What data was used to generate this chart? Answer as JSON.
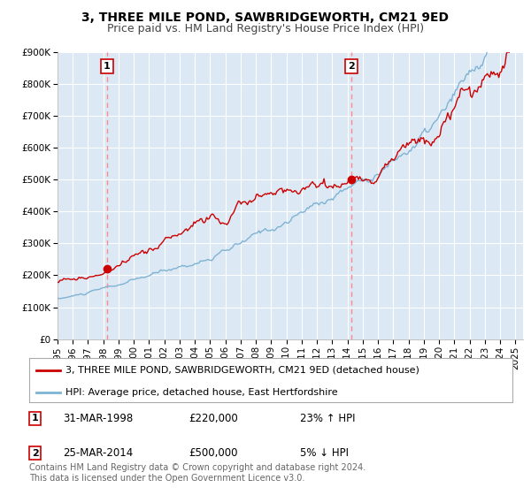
{
  "title": "3, THREE MILE POND, SAWBRIDGEWORTH, CM21 9ED",
  "subtitle": "Price paid vs. HM Land Registry's House Price Index (HPI)",
  "ylim": [
    0,
    900000
  ],
  "xlim_start": 1995.0,
  "xlim_end": 2025.5,
  "yticks": [
    0,
    100000,
    200000,
    300000,
    400000,
    500000,
    600000,
    700000,
    800000,
    900000
  ],
  "ytick_labels": [
    "£0",
    "£100K",
    "£200K",
    "£300K",
    "£400K",
    "£500K",
    "£600K",
    "£700K",
    "£800K",
    "£900K"
  ],
  "xticks": [
    1995,
    1996,
    1997,
    1998,
    1999,
    2000,
    2001,
    2002,
    2003,
    2004,
    2005,
    2006,
    2007,
    2008,
    2009,
    2010,
    2011,
    2012,
    2013,
    2014,
    2015,
    2016,
    2017,
    2018,
    2019,
    2020,
    2021,
    2022,
    2023,
    2024,
    2025
  ],
  "bg_color": "#dce9f5",
  "grid_color": "#ffffff",
  "red_line_color": "#cc0000",
  "blue_line_color": "#7fb3d3",
  "dashed_line_color": "#ff8888",
  "marker_color": "#cc0000",
  "sale1_x": 1998.25,
  "sale1_y": 220000,
  "sale2_x": 2014.25,
  "sale2_y": 500000,
  "legend_red": "3, THREE MILE POND, SAWBRIDGEWORTH, CM21 9ED (detached house)",
  "legend_blue": "HPI: Average price, detached house, East Hertfordshire",
  "footer": "Contains HM Land Registry data © Crown copyright and database right 2024.\nThis data is licensed under the Open Government Licence v3.0.",
  "title_fontsize": 10,
  "subtitle_fontsize": 9,
  "tick_fontsize": 7.5,
  "legend_fontsize": 8,
  "table_fontsize": 8.5,
  "footer_fontsize": 7
}
